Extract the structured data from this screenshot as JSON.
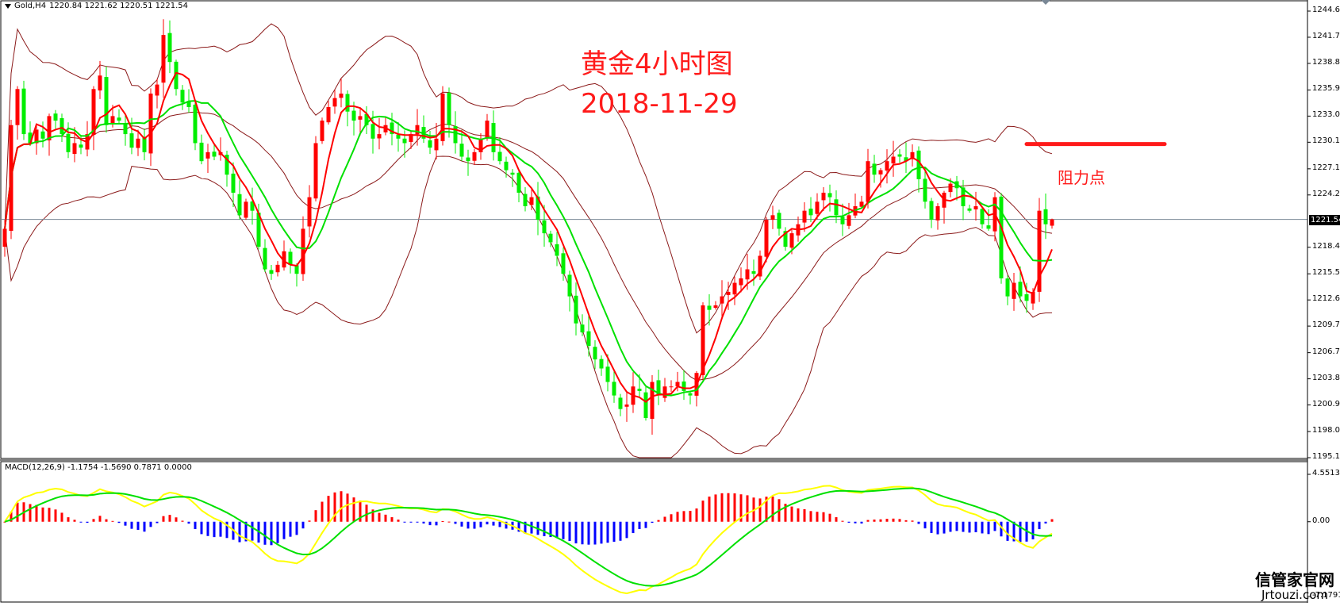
{
  "header": {
    "symbol": "Gold,H4",
    "ohlc": "1220.84 1221.62 1220.51 1221.54"
  },
  "annotation": {
    "title_line1": "黄金4小时图",
    "title_line2": "2018-11-29",
    "resistance_label": "阻力点",
    "resistance_price": 1229.9
  },
  "macd_label": "MACD(12,26,9) -1.1754 -1.5690 0.7871 0.0000",
  "watermark": {
    "cn": "信管家官网",
    "en": "Jrtouzi.com"
  },
  "colors": {
    "bull": "#ff0000",
    "bear": "#00ee00",
    "bands": "#8b1a1a",
    "ma_fast": "#ff0000",
    "ma_slow": "#00e000",
    "macd_line": "#ffff00",
    "signal_line": "#00e000",
    "hist_pos": "#ff0000",
    "hist_neg": "#0000ff",
    "price_line": "#7a8896"
  },
  "chart_data": [
    {
      "type": "candlestick",
      "title": "Gold,H4",
      "subtitle": "黄金4小时图 2018-11-29",
      "ylim": [
        1195.1,
        1244.65
      ],
      "y_ticks": [
        1244.65,
        1241.75,
        1238.85,
        1235.9,
        1233.0,
        1230.1,
        1227.15,
        1224.25,
        1221.54,
        1218.45,
        1215.5,
        1212.6,
        1209.7,
        1206.75,
        1203.85,
        1200.95,
        1198.0,
        1195.1
      ],
      "current_price": 1221.54,
      "last_bar": {
        "open": 1220.84,
        "high": 1221.62,
        "low": 1220.51,
        "close": 1221.54
      },
      "overlays": [
        "Bollinger Bands",
        "MA fast (red)",
        "MA slow (green)"
      ],
      "annotations": [
        {
          "type": "hline",
          "price": 1229.9,
          "label": "阻力点"
        }
      ],
      "closes": [
        1220.5,
        1232.0,
        1236.0,
        1231.0,
        1230.0,
        1231.5,
        1230.5,
        1233.0,
        1232.5,
        1231.0,
        1229.0,
        1230.0,
        1229.5,
        1231.0,
        1236.0,
        1237.5,
        1232.0,
        1233.0,
        1232.5,
        1231.0,
        1229.5,
        1230.5,
        1229.0,
        1235.5,
        1236.5,
        1242.0,
        1239.0,
        1236.0,
        1234.5,
        1234.0,
        1230.0,
        1228.0,
        1229.0,
        1228.5,
        1229.0,
        1226.5,
        1224.5,
        1222.0,
        1223.5,
        1222.5,
        1218.5,
        1216.0,
        1215.5,
        1216.5,
        1218.0,
        1216.5,
        1215.5,
        1220.5,
        1224.0,
        1230.0,
        1232.5,
        1234.0,
        1235.0,
        1235.5,
        1233.5,
        1232.5,
        1233.0,
        1232.0,
        1230.5,
        1231.0,
        1232.0,
        1231.0,
        1230.5,
        1230.0,
        1231.0,
        1232.0,
        1230.5,
        1229.5,
        1230.5,
        1235.5,
        1232.0,
        1230.0,
        1228.5,
        1228.0,
        1229.0,
        1230.5,
        1232.5,
        1229.0,
        1228.0,
        1227.0,
        1226.5,
        1224.5,
        1223.0,
        1224.0,
        1221.5,
        1220.0,
        1219.0,
        1217.5,
        1215.5,
        1213.0,
        1210.0,
        1209.0,
        1207.5,
        1206.0,
        1205.0,
        1203.5,
        1202.0,
        1200.5,
        1201.0,
        1203.0,
        1202.5,
        1199.5,
        1203.5,
        1202.0,
        1203.0,
        1203.0,
        1203.5,
        1202.5,
        1202.0,
        1204.5,
        1212.0,
        1211.5,
        1212.0,
        1213.0,
        1213.5,
        1214.5,
        1215.0,
        1216.0,
        1215.5,
        1217.5,
        1221.5,
        1222.0,
        1220.5,
        1218.5,
        1220.0,
        1221.0,
        1222.5,
        1222.0,
        1223.5,
        1224.5,
        1224.0,
        1222.0,
        1221.0,
        1222.0,
        1223.0,
        1223.5,
        1228.0,
        1226.5,
        1227.0,
        1228.0,
        1228.5,
        1228.5,
        1228.0,
        1229.0,
        1226.0,
        1223.5,
        1221.5,
        1223.0,
        1224.5,
        1225.5,
        1225.0,
        1223.0,
        1222.5,
        1223.0,
        1221.0,
        1220.5,
        1224.0,
        1215.0,
        1213.0,
        1214.5,
        1213.0,
        1212.5,
        1213.5,
        1222.5,
        1221.0,
        1221.54
      ]
    },
    {
      "type": "bar+line",
      "title": "MACD(12,26,9)",
      "values": {
        "macd": -1.1754,
        "signal": -1.569,
        "histogram": 0.7871,
        "zero": 0.0
      },
      "ylim": [
        -7.1791,
        4.5513
      ],
      "y_ticks": [
        4.5513,
        0.0,
        -7.1791
      ]
    }
  ]
}
